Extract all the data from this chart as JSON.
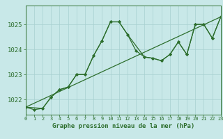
{
  "title": "Graphe pression niveau de la mer (hPa)",
  "bg_color": "#c8e8e8",
  "grid_color": "#a8d0d0",
  "line_color": "#2d6e2d",
  "x_min": 0,
  "x_max": 23,
  "y_min": 1021.4,
  "y_max": 1025.75,
  "y_ticks": [
    1022,
    1023,
    1024,
    1025
  ],
  "x_ticks": [
    0,
    1,
    2,
    3,
    4,
    5,
    6,
    7,
    8,
    9,
    10,
    11,
    12,
    13,
    14,
    15,
    16,
    17,
    18,
    19,
    20,
    21,
    22,
    23
  ],
  "series1_x": [
    0,
    1,
    2,
    3,
    4,
    5,
    6,
    7,
    8,
    9,
    10,
    11,
    12,
    13,
    14,
    15,
    16,
    17,
    18,
    19,
    20,
    21,
    22,
    23
  ],
  "series1_y": [
    1021.7,
    1021.6,
    1021.65,
    1022.1,
    1022.4,
    1022.5,
    1023.0,
    1023.0,
    1023.75,
    1024.35,
    1025.1,
    1025.1,
    1024.6,
    1023.95,
    1023.7,
    1023.65,
    1023.55,
    1023.8,
    1024.3,
    1023.8,
    1025.0,
    1025.0,
    1024.45,
    1025.3
  ],
  "series2_x": [
    0,
    2,
    3,
    4,
    5,
    6,
    7,
    8,
    9,
    10,
    11,
    12,
    14,
    15,
    16,
    17,
    18,
    19,
    20,
    21,
    22,
    23
  ],
  "series2_y": [
    1021.7,
    1021.65,
    1022.1,
    1022.4,
    1022.5,
    1023.0,
    1023.0,
    1023.75,
    1024.35,
    1025.1,
    1025.1,
    1024.6,
    1023.7,
    1023.65,
    1023.55,
    1023.8,
    1024.3,
    1023.8,
    1025.0,
    1025.0,
    1024.45,
    1025.3
  ],
  "series3_x": [
    0,
    23
  ],
  "series3_y": [
    1021.7,
    1025.3
  ],
  "title_fontsize": 6.5,
  "tick_fontsize": 5.0
}
